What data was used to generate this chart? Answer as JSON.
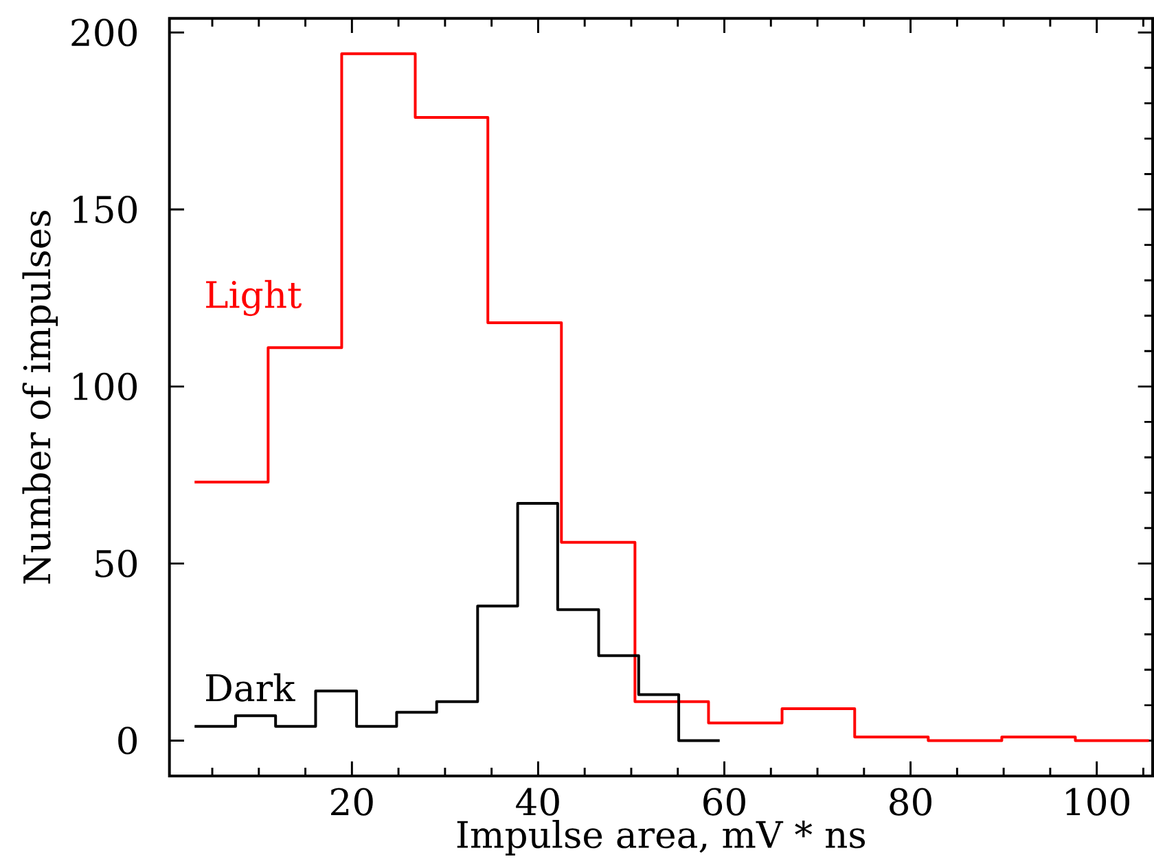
{
  "chart_data": {
    "type": "step",
    "xlabel": "Impulse area, mV * ns",
    "ylabel": "Number of impulses",
    "series": [
      {
        "name": "Light",
        "color": "#ff0000",
        "x": [
          3.1,
          11.0,
          18.9,
          26.8,
          34.6,
          42.5,
          50.4,
          58.3,
          66.2,
          74.0,
          81.9,
          89.8,
          97.7,
          105.6
        ],
        "values": [
          73,
          111,
          194,
          176,
          118,
          56,
          11,
          5,
          9,
          1,
          0,
          1,
          0,
          0
        ]
      },
      {
        "name": "Dark",
        "color": "#000000",
        "x": [
          3.1,
          7.5,
          11.8,
          16.1,
          20.5,
          24.8,
          29.1,
          33.5,
          37.8,
          42.1,
          46.5,
          50.8,
          55.1,
          59.5
        ],
        "values": [
          4,
          7,
          4,
          14,
          4,
          8,
          11,
          38,
          67,
          37,
          24,
          13,
          0,
          0
        ]
      }
    ],
    "xlim": [
      0.4,
      106
    ],
    "ylim": [
      -10,
      204
    ],
    "xticks": [
      {
        "value": 5,
        "label": null
      },
      {
        "value": 10,
        "label": null
      },
      {
        "value": 15,
        "label": null
      },
      20,
      {
        "value": 25,
        "label": null
      },
      {
        "value": 30,
        "label": null
      },
      {
        "value": 35,
        "label": null
      },
      40,
      {
        "value": 45,
        "label": null
      },
      {
        "value": 50,
        "label": null
      },
      {
        "value": 55,
        "label": null
      },
      60,
      {
        "value": 65,
        "label": null
      },
      {
        "value": 70,
        "label": null
      },
      {
        "value": 75,
        "label": null
      },
      80,
      {
        "value": 85,
        "label": null
      },
      {
        "value": 90,
        "label": null
      },
      {
        "value": 95,
        "label": null
      },
      100,
      {
        "value": 105,
        "label": null
      }
    ],
    "yticks": [
      0,
      {
        "value": 10,
        "label": null
      },
      {
        "value": 20,
        "label": null
      },
      {
        "value": 30,
        "label": null
      },
      {
        "value": 40,
        "label": null
      },
      50,
      {
        "value": 60,
        "label": null
      },
      {
        "value": 70,
        "label": null
      },
      {
        "value": 80,
        "label": null
      },
      {
        "value": 90,
        "label": null
      },
      100,
      {
        "value": 110,
        "label": null
      },
      {
        "value": 120,
        "label": null
      },
      {
        "value": 130,
        "label": null
      },
      {
        "value": 140,
        "label": null
      },
      150,
      {
        "value": 160,
        "label": null
      },
      {
        "value": 170,
        "label": null
      },
      {
        "value": 180,
        "label": null
      },
      {
        "value": 190,
        "label": null
      },
      200
    ],
    "line_style": "solid"
  }
}
